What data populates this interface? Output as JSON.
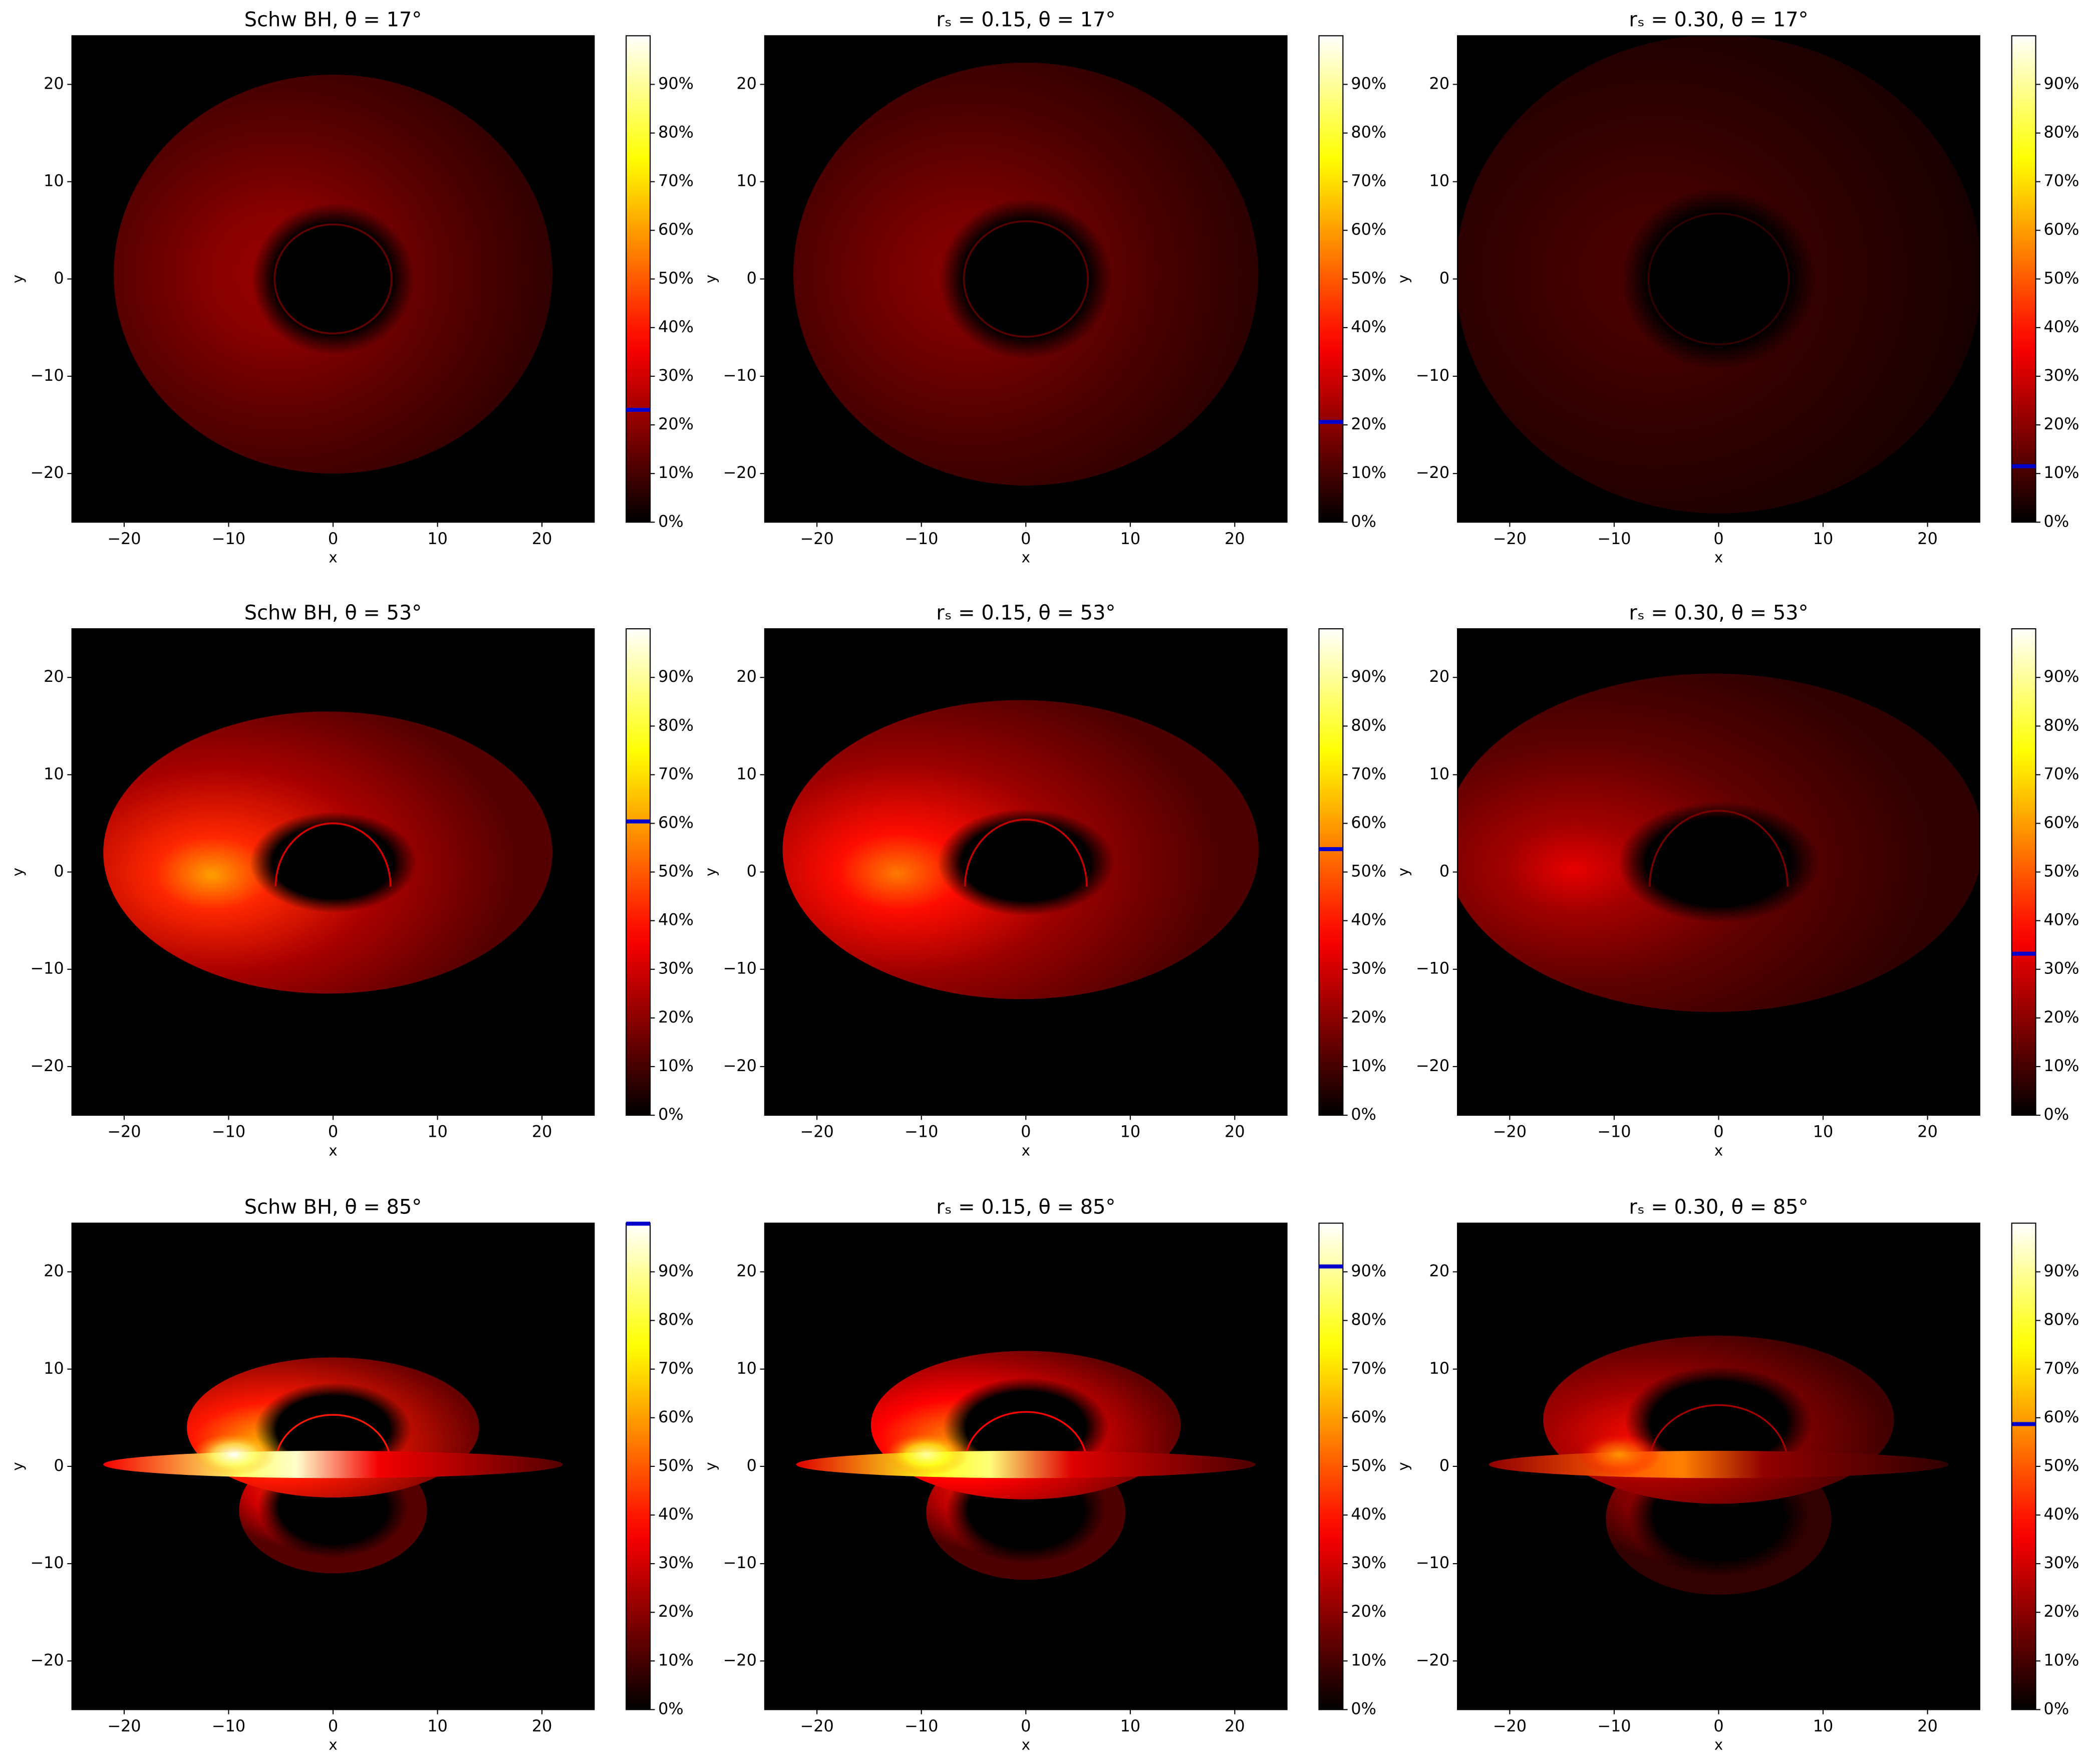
{
  "chart_data": [
    {
      "type": "heatmap",
      "title": "Schw BH,  θ = 17°",
      "xlabel": "x",
      "ylabel": "y",
      "xlim": [
        -25,
        25
      ],
      "ylim": [
        -25,
        25
      ],
      "xticks": [
        {
          "value": -20,
          "label": "−20"
        },
        {
          "value": -10,
          "label": "−10"
        },
        0,
        10,
        20
      ],
      "yticks": [
        {
          "value": -20,
          "label": "−20"
        },
        {
          "value": -10,
          "label": "−10"
        },
        0,
        10,
        20
      ],
      "colorbar": {
        "cmap": "hot",
        "lim": [
          0,
          100
        ],
        "ticks": [
          {
            "value": 0,
            "label": "0%"
          },
          {
            "value": 10,
            "label": "10%"
          },
          {
            "value": 20,
            "label": "20%"
          },
          {
            "value": 30,
            "label": "30%"
          },
          {
            "value": 40,
            "label": "40%"
          },
          {
            "value": 50,
            "label": "50%"
          },
          {
            "value": 60,
            "label": "60%"
          },
          {
            "value": 70,
            "label": "70%"
          },
          {
            "value": 80,
            "label": "80%"
          },
          {
            "value": 90,
            "label": "90%"
          }
        ],
        "marker": 23.1,
        "marker_color": "#0000cc"
      }
    },
    {
      "type": "heatmap",
      "title": "rₛ = 0.15,  θ = 17°",
      "xlabel": "x",
      "ylabel": "y",
      "xlim": [
        -25,
        25
      ],
      "ylim": [
        -25,
        25
      ],
      "xticks": [
        {
          "value": -20,
          "label": "−20"
        },
        {
          "value": -10,
          "label": "−10"
        },
        0,
        10,
        20
      ],
      "yticks": [
        {
          "value": -20,
          "label": "−20"
        },
        {
          "value": -10,
          "label": "−10"
        },
        0,
        10,
        20
      ],
      "colorbar": {
        "cmap": "hot",
        "lim": [
          0,
          100
        ],
        "ticks": [
          {
            "value": 0,
            "label": "0%"
          },
          {
            "value": 10,
            "label": "10%"
          },
          {
            "value": 20,
            "label": "20%"
          },
          {
            "value": 30,
            "label": "30%"
          },
          {
            "value": 40,
            "label": "40%"
          },
          {
            "value": 50,
            "label": "50%"
          },
          {
            "value": 60,
            "label": "60%"
          },
          {
            "value": 70,
            "label": "70%"
          },
          {
            "value": 80,
            "label": "80%"
          },
          {
            "value": 90,
            "label": "90%"
          }
        ],
        "marker": 20.6,
        "marker_color": "#0000cc"
      }
    },
    {
      "type": "heatmap",
      "title": "rₛ = 0.30,  θ = 17°",
      "xlabel": "x",
      "ylabel": "y",
      "xlim": [
        -25,
        25
      ],
      "ylim": [
        -25,
        25
      ],
      "xticks": [
        {
          "value": -20,
          "label": "−20"
        },
        {
          "value": -10,
          "label": "−10"
        },
        0,
        10,
        20
      ],
      "yticks": [
        {
          "value": -20,
          "label": "−20"
        },
        {
          "value": -10,
          "label": "−10"
        },
        0,
        10,
        20
      ],
      "colorbar": {
        "cmap": "hot",
        "lim": [
          0,
          100
        ],
        "ticks": [
          {
            "value": 0,
            "label": "0%"
          },
          {
            "value": 10,
            "label": "10%"
          },
          {
            "value": 20,
            "label": "20%"
          },
          {
            "value": 30,
            "label": "30%"
          },
          {
            "value": 40,
            "label": "40%"
          },
          {
            "value": 50,
            "label": "50%"
          },
          {
            "value": 60,
            "label": "60%"
          },
          {
            "value": 70,
            "label": "70%"
          },
          {
            "value": 80,
            "label": "80%"
          },
          {
            "value": 90,
            "label": "90%"
          }
        ],
        "marker": 11.5,
        "marker_color": "#0000cc"
      }
    },
    {
      "type": "heatmap",
      "title": "Schw BH,  θ = 53°",
      "xlabel": "x",
      "ylabel": "y",
      "xlim": [
        -25,
        25
      ],
      "ylim": [
        -25,
        25
      ],
      "xticks": [
        {
          "value": -20,
          "label": "−20"
        },
        {
          "value": -10,
          "label": "−10"
        },
        0,
        10,
        20
      ],
      "yticks": [
        {
          "value": -20,
          "label": "−20"
        },
        {
          "value": -10,
          "label": "−10"
        },
        0,
        10,
        20
      ],
      "colorbar": {
        "cmap": "hot",
        "lim": [
          0,
          100
        ],
        "ticks": [
          {
            "value": 0,
            "label": "0%"
          },
          {
            "value": 10,
            "label": "10%"
          },
          {
            "value": 20,
            "label": "20%"
          },
          {
            "value": 30,
            "label": "30%"
          },
          {
            "value": 40,
            "label": "40%"
          },
          {
            "value": 50,
            "label": "50%"
          },
          {
            "value": 60,
            "label": "60%"
          },
          {
            "value": 70,
            "label": "70%"
          },
          {
            "value": 80,
            "label": "80%"
          },
          {
            "value": 90,
            "label": "90%"
          }
        ],
        "marker": 60.4,
        "marker_color": "#0000cc"
      }
    },
    {
      "type": "heatmap",
      "title": "rₛ = 0.15,  θ = 53°",
      "xlabel": "x",
      "ylabel": "y",
      "xlim": [
        -25,
        25
      ],
      "ylim": [
        -25,
        25
      ],
      "xticks": [
        {
          "value": -20,
          "label": "−20"
        },
        {
          "value": -10,
          "label": "−10"
        },
        0,
        10,
        20
      ],
      "yticks": [
        {
          "value": -20,
          "label": "−20"
        },
        {
          "value": -10,
          "label": "−10"
        },
        0,
        10,
        20
      ],
      "colorbar": {
        "cmap": "hot",
        "lim": [
          0,
          100
        ],
        "ticks": [
          {
            "value": 0,
            "label": "0%"
          },
          {
            "value": 10,
            "label": "10%"
          },
          {
            "value": 20,
            "label": "20%"
          },
          {
            "value": 30,
            "label": "30%"
          },
          {
            "value": 40,
            "label": "40%"
          },
          {
            "value": 50,
            "label": "50%"
          },
          {
            "value": 60,
            "label": "60%"
          },
          {
            "value": 70,
            "label": "70%"
          },
          {
            "value": 80,
            "label": "80%"
          },
          {
            "value": 90,
            "label": "90%"
          }
        ],
        "marker": 54.7,
        "marker_color": "#0000cc"
      }
    },
    {
      "type": "heatmap",
      "title": "rₛ = 0.30,  θ = 53°",
      "xlabel": "x",
      "ylabel": "y",
      "xlim": [
        -25,
        25
      ],
      "ylim": [
        -25,
        25
      ],
      "xticks": [
        {
          "value": -20,
          "label": "−20"
        },
        {
          "value": -10,
          "label": "−10"
        },
        0,
        10,
        20
      ],
      "yticks": [
        {
          "value": -20,
          "label": "−20"
        },
        {
          "value": -10,
          "label": "−10"
        },
        0,
        10,
        20
      ],
      "colorbar": {
        "cmap": "hot",
        "lim": [
          0,
          100
        ],
        "ticks": [
          {
            "value": 0,
            "label": "0%"
          },
          {
            "value": 10,
            "label": "10%"
          },
          {
            "value": 20,
            "label": "20%"
          },
          {
            "value": 30,
            "label": "30%"
          },
          {
            "value": 40,
            "label": "40%"
          },
          {
            "value": 50,
            "label": "50%"
          },
          {
            "value": 60,
            "label": "60%"
          },
          {
            "value": 70,
            "label": "70%"
          },
          {
            "value": 80,
            "label": "80%"
          },
          {
            "value": 90,
            "label": "90%"
          }
        ],
        "marker": 33.2,
        "marker_color": "#0000cc"
      }
    },
    {
      "type": "heatmap",
      "title": "Schw BH,  θ = 85°",
      "xlabel": "x",
      "ylabel": "y",
      "xlim": [
        -25,
        25
      ],
      "ylim": [
        -25,
        25
      ],
      "xticks": [
        {
          "value": -20,
          "label": "−20"
        },
        {
          "value": -10,
          "label": "−10"
        },
        0,
        10,
        20
      ],
      "yticks": [
        {
          "value": -20,
          "label": "−20"
        },
        {
          "value": -10,
          "label": "−10"
        },
        0,
        10,
        20
      ],
      "colorbar": {
        "cmap": "hot",
        "lim": [
          0,
          100
        ],
        "ticks": [
          {
            "value": 0,
            "label": "0%"
          },
          {
            "value": 10,
            "label": "10%"
          },
          {
            "value": 20,
            "label": "20%"
          },
          {
            "value": 30,
            "label": "30%"
          },
          {
            "value": 40,
            "label": "40%"
          },
          {
            "value": 50,
            "label": "50%"
          },
          {
            "value": 60,
            "label": "60%"
          },
          {
            "value": 70,
            "label": "70%"
          },
          {
            "value": 80,
            "label": "80%"
          },
          {
            "value": 90,
            "label": "90%"
          }
        ],
        "marker": 99.9,
        "marker_color": "#0000cc"
      }
    },
    {
      "type": "heatmap",
      "title": "rₛ = 0.15,  θ = 85°",
      "xlabel": "x",
      "ylabel": "y",
      "xlim": [
        -25,
        25
      ],
      "ylim": [
        -25,
        25
      ],
      "xticks": [
        {
          "value": -20,
          "label": "−20"
        },
        {
          "value": -10,
          "label": "−10"
        },
        0,
        10,
        20
      ],
      "yticks": [
        {
          "value": -20,
          "label": "−20"
        },
        {
          "value": -10,
          "label": "−10"
        },
        0,
        10,
        20
      ],
      "colorbar": {
        "cmap": "hot",
        "lim": [
          0,
          100
        ],
        "ticks": [
          {
            "value": 0,
            "label": "0%"
          },
          {
            "value": 10,
            "label": "10%"
          },
          {
            "value": 20,
            "label": "20%"
          },
          {
            "value": 30,
            "label": "30%"
          },
          {
            "value": 40,
            "label": "40%"
          },
          {
            "value": 50,
            "label": "50%"
          },
          {
            "value": 60,
            "label": "60%"
          },
          {
            "value": 70,
            "label": "70%"
          },
          {
            "value": 80,
            "label": "80%"
          },
          {
            "value": 90,
            "label": "90%"
          }
        ],
        "marker": 91.1,
        "marker_color": "#0000cc"
      }
    },
    {
      "type": "heatmap",
      "title": "rₛ = 0.30,  θ = 85°",
      "xlabel": "x",
      "ylabel": "y",
      "xlim": [
        -25,
        25
      ],
      "ylim": [
        -25,
        25
      ],
      "xticks": [
        {
          "value": -20,
          "label": "−20"
        },
        {
          "value": -10,
          "label": "−10"
        },
        0,
        10,
        20
      ],
      "yticks": [
        {
          "value": -20,
          "label": "−20"
        },
        {
          "value": -10,
          "label": "−10"
        },
        0,
        10,
        20
      ],
      "colorbar": {
        "cmap": "hot",
        "lim": [
          0,
          100
        ],
        "ticks": [
          {
            "value": 0,
            "label": "0%"
          },
          {
            "value": 10,
            "label": "10%"
          },
          {
            "value": 20,
            "label": "20%"
          },
          {
            "value": 30,
            "label": "30%"
          },
          {
            "value": 40,
            "label": "40%"
          },
          {
            "value": 50,
            "label": "50%"
          },
          {
            "value": 60,
            "label": "60%"
          },
          {
            "value": 70,
            "label": "70%"
          },
          {
            "value": 80,
            "label": "80%"
          },
          {
            "value": 90,
            "label": "90%"
          }
        ],
        "marker": 58.7,
        "marker_color": "#0000cc"
      }
    }
  ]
}
